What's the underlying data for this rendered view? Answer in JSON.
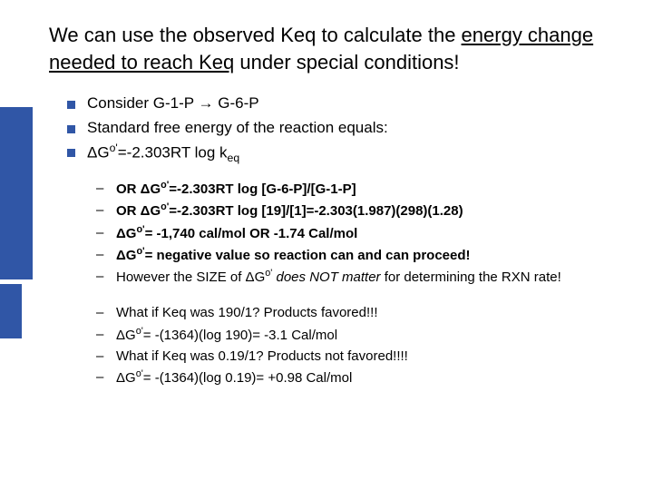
{
  "accent_color": "#3056a6",
  "title": {
    "pre": "We can use the observed Keq to calculate the ",
    "u1": "energy change needed to reach Keq",
    "post": " under special conditions!"
  },
  "bullets1": {
    "b0_pre": "Consider G-1-P ",
    "b0_arrow": "→",
    "b0_post": " G-6-P",
    "b1": "Standard free energy of the reaction equals:",
    "b2_pre": "ΔG",
    "b2_sup": "o'",
    "b2_mid": "=-2.303RT log k",
    "b2_sub": "eq"
  },
  "group1": {
    "l0_pre": "OR ΔG",
    "l0_sup": "o'",
    "l0_post": "=-2.303RT log [G-6-P]/[G-1-P]",
    "l1_pre": "OR ΔG",
    "l1_sup": "o'",
    "l1_post": "=-2.303RT log [19]/[1]=-2.303(1.987)(298)(1.28)",
    "l2_pre": "ΔG",
    "l2_sup": "o'",
    "l2_post": "= -1,740 cal/mol OR -1.74 Cal/mol",
    "l3_pre": "ΔG",
    "l3_sup": "o'",
    "l3_post": "= negative value so reaction can and can proceed!",
    "l4_a": "However the SIZE of ΔG",
    "l4_sup": "o'",
    "l4_b": " does NOT matter",
    "l4_c": " for determining the RXN rate!"
  },
  "group2": {
    "l0": "What if Keq was 190/1? Products favored!!!",
    "l1_pre": "ΔG",
    "l1_sup": "o'",
    "l1_post": "= -(1364)(log 190)= -3.1 Cal/mol",
    "l2": "What if Keq was 0.19/1? Products not favored!!!!",
    "l3_pre": "ΔG",
    "l3_sup": "o'",
    "l3_post": "= -(1364)(log 0.19)= +0.98 Cal/mol"
  }
}
